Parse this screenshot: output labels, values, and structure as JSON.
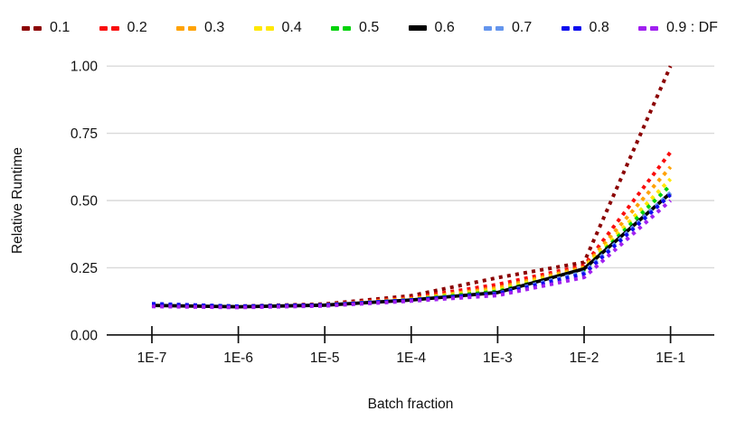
{
  "chart_data": {
    "type": "line",
    "title": "",
    "xlabel": "Batch fraction",
    "ylabel": "Relative Runtime",
    "x_scale": "log10",
    "x": [
      1e-07,
      1e-06,
      1e-05,
      0.0001,
      0.001,
      0.01,
      0.1
    ],
    "x_tick_labels": [
      "1E-7",
      "1E-6",
      "1E-5",
      "1E-4",
      "1E-3",
      "1E-2",
      "1E-1"
    ],
    "ylim": [
      0.0,
      1.0
    ],
    "yticks": [
      0.0,
      0.25,
      0.5,
      0.75,
      1.0
    ],
    "ytick_labels": [
      "0.00",
      "0.25",
      "0.50",
      "0.75",
      "1.00"
    ],
    "grid": true,
    "legend_position": "top",
    "grid_color": "#D9D9D9",
    "axis_color": "#111111",
    "series": [
      {
        "name": "0.1",
        "label": "0.1",
        "color": "#8B0000",
        "style": "dotted",
        "values": [
          0.112,
          0.107,
          0.115,
          0.146,
          0.213,
          0.27,
          1.0
        ]
      },
      {
        "name": "0.2",
        "label": "0.2",
        "color": "#F90D0D",
        "style": "dotted",
        "values": [
          0.11,
          0.106,
          0.113,
          0.138,
          0.188,
          0.258,
          0.68
        ]
      },
      {
        "name": "0.3",
        "label": "0.3",
        "color": "#FFA200",
        "style": "dotted",
        "values": [
          0.11,
          0.105,
          0.112,
          0.134,
          0.175,
          0.252,
          0.625
        ]
      },
      {
        "name": "0.4",
        "label": "0.4",
        "color": "#FFE800",
        "style": "dotted",
        "values": [
          0.109,
          0.105,
          0.112,
          0.132,
          0.168,
          0.247,
          0.58
        ]
      },
      {
        "name": "0.5",
        "label": "0.5",
        "color": "#00D20A",
        "style": "dotted",
        "values": [
          0.109,
          0.105,
          0.111,
          0.131,
          0.162,
          0.242,
          0.557
        ]
      },
      {
        "name": "0.6",
        "label": "0.6",
        "color": "#000000",
        "style": "solid",
        "values": [
          0.11,
          0.105,
          0.111,
          0.13,
          0.158,
          0.246,
          0.528
        ]
      },
      {
        "name": "0.7",
        "label": "0.7",
        "color": "#6495ED",
        "style": "dotted",
        "values": [
          0.112,
          0.106,
          0.111,
          0.13,
          0.155,
          0.234,
          0.53
        ]
      },
      {
        "name": "0.8",
        "label": "0.8",
        "color": "#0D0DEE",
        "style": "dotted",
        "values": [
          0.116,
          0.107,
          0.112,
          0.13,
          0.153,
          0.227,
          0.522
        ]
      },
      {
        "name": "0.9",
        "label": "0.9 : DF",
        "color": "#A020F0",
        "style": "dotted",
        "values": [
          0.106,
          0.102,
          0.108,
          0.126,
          0.147,
          0.214,
          0.5
        ]
      }
    ]
  }
}
